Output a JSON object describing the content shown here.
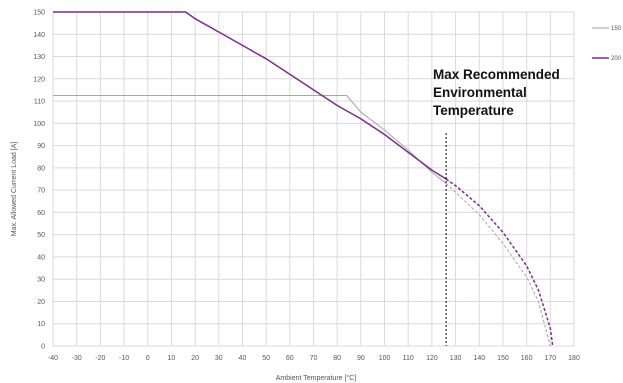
{
  "chart_data": {
    "type": "line",
    "title": "",
    "xlabel": "Ambient Temperature [°C]",
    "ylabel": "Max. Allowed Current Load [A]",
    "xlim": [
      -40,
      180
    ],
    "ylim": [
      0,
      150
    ],
    "xticks": [
      -40,
      -30,
      -20,
      -10,
      0,
      10,
      20,
      30,
      40,
      50,
      60,
      70,
      80,
      90,
      100,
      110,
      120,
      130,
      140,
      150,
      160,
      170,
      180
    ],
    "yticks": [
      0,
      10,
      20,
      30,
      40,
      50,
      60,
      70,
      80,
      90,
      100,
      110,
      120,
      130,
      140,
      150
    ],
    "grid": true,
    "legend_position": "right",
    "annotation": {
      "lines": [
        "Max Recommended",
        "Environmental",
        "Temperature"
      ],
      "x": 126
    },
    "series": [
      {
        "name": "150",
        "color": "#a6a6a6",
        "solid": [
          [
            -40,
            112.5
          ],
          [
            84,
            112.5
          ],
          [
            90,
            105
          ],
          [
            100,
            97
          ],
          [
            110,
            88
          ],
          [
            120,
            78
          ],
          [
            126,
            73
          ]
        ],
        "dashed": [
          [
            126,
            73
          ],
          [
            130,
            69
          ],
          [
            140,
            59
          ],
          [
            150,
            46
          ],
          [
            160,
            31
          ],
          [
            165,
            20
          ],
          [
            170,
            0
          ]
        ]
      },
      {
        "name": "200",
        "color": "#7b2c8e",
        "solid": [
          [
            -40,
            150
          ],
          [
            16,
            150
          ],
          [
            20,
            147
          ],
          [
            30,
            141
          ],
          [
            40,
            135
          ],
          [
            50,
            129
          ],
          [
            60,
            122
          ],
          [
            70,
            115
          ],
          [
            80,
            108
          ],
          [
            90,
            102
          ],
          [
            100,
            95
          ],
          [
            110,
            87
          ],
          [
            120,
            79
          ],
          [
            126,
            75
          ]
        ],
        "dashed": [
          [
            126,
            75
          ],
          [
            130,
            72
          ],
          [
            140,
            63
          ],
          [
            150,
            51
          ],
          [
            160,
            36
          ],
          [
            165,
            25
          ],
          [
            170,
            8
          ],
          [
            171,
            0
          ]
        ]
      }
    ]
  }
}
